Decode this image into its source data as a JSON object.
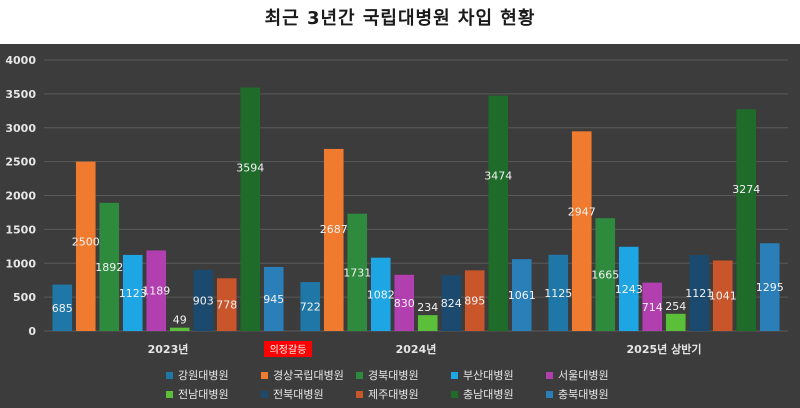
{
  "title": "최근 3년간 국립대병원 차입 현황",
  "annotation": {
    "text": "의정갈등",
    "color": "#ff0000"
  },
  "chart_data": {
    "type": "bar",
    "title": "최근 3년간 국립대병원 차입 현황",
    "categories": [
      "2023년",
      "2024년",
      "2025년 상반기"
    ],
    "ylim": [
      0,
      4000
    ],
    "yticks": [
      0,
      500,
      1000,
      1500,
      2000,
      2500,
      3000,
      3500,
      4000
    ],
    "grid": true,
    "legend_position": "bottom",
    "series": [
      {
        "name": "강원대병원",
        "color": "#1f77a8",
        "values": [
          685,
          722,
          1125
        ]
      },
      {
        "name": "경상국립대병원",
        "color": "#f07a2e",
        "values": [
          2500,
          2687,
          2947
        ]
      },
      {
        "name": "경북대병원",
        "color": "#2e8b3e",
        "values": [
          1892,
          1731,
          1665
        ]
      },
      {
        "name": "부산대병원",
        "color": "#1ea5e3",
        "values": [
          1123,
          1082,
          1243
        ]
      },
      {
        "name": "서울대병원",
        "color": "#b23fb0",
        "values": [
          1189,
          830,
          714
        ]
      },
      {
        "name": "전남대병원",
        "color": "#5cbf3a",
        "values": [
          49,
          234,
          254
        ]
      },
      {
        "name": "전북대병원",
        "color": "#1c4a6e",
        "values": [
          903,
          824,
          1121
        ]
      },
      {
        "name": "제주대병원",
        "color": "#c9552a",
        "values": [
          778,
          895,
          1041
        ]
      },
      {
        "name": "충남대병원",
        "color": "#1f6b2a",
        "values": [
          3594,
          3474,
          3274
        ]
      },
      {
        "name": "충북대병원",
        "color": "#2a7fb8",
        "values": [
          945,
          1061,
          1295
        ]
      }
    ]
  }
}
